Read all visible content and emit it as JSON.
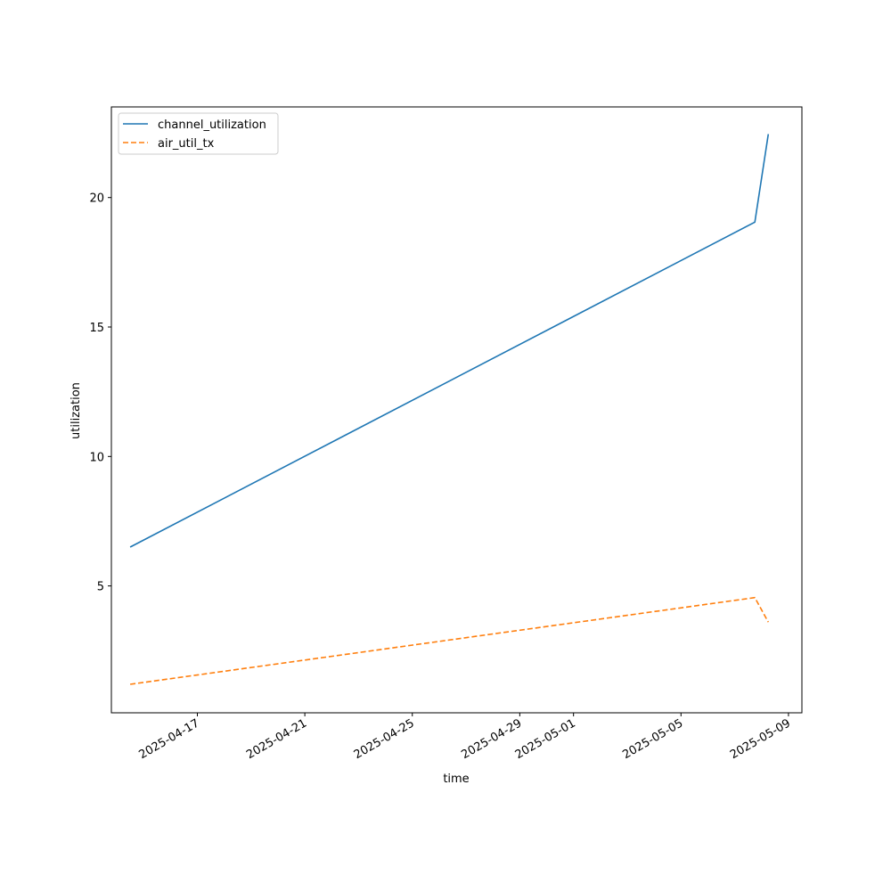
{
  "chart_data": {
    "type": "line",
    "title": "",
    "xlabel": "time",
    "ylabel": "utilization",
    "x_type": "date",
    "xlim": [
      "2025-04-13T19:12",
      "2025-05-09T12:00"
    ],
    "ylim": [
      0.1,
      23.5
    ],
    "x_ticks": [
      "2025-04-17",
      "2025-04-21",
      "2025-04-25",
      "2025-04-29",
      "2025-05-01",
      "2025-05-05",
      "2025-05-09"
    ],
    "y_ticks": [
      5,
      10,
      15,
      20
    ],
    "grid": false,
    "legend_position": "upper-left",
    "series": [
      {
        "name": "channel_utilization",
        "color": "#1f77b4",
        "dash": "solid",
        "x": [
          "2025-04-14T12:00",
          "2025-05-07T18:00",
          "2025-05-08T06:00"
        ],
        "y": [
          6.5,
          19.05,
          22.45
        ]
      },
      {
        "name": "air_util_tx",
        "color": "#ff7f0e",
        "dash": "dashed",
        "x": [
          "2025-04-14T12:00",
          "2025-05-07T18:00",
          "2025-05-08T06:00"
        ],
        "y": [
          1.2,
          4.55,
          3.6
        ]
      }
    ]
  }
}
